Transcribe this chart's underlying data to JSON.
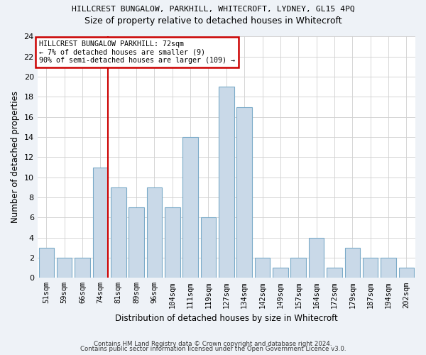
{
  "title": "HILLCREST BUNGALOW, PARKHILL, WHITECROFT, LYDNEY, GL15 4PQ",
  "subtitle": "Size of property relative to detached houses in Whitecroft",
  "xlabel": "Distribution of detached houses by size in Whitecroft",
  "ylabel": "Number of detached properties",
  "categories": [
    "51sqm",
    "59sqm",
    "66sqm",
    "74sqm",
    "81sqm",
    "89sqm",
    "96sqm",
    "104sqm",
    "111sqm",
    "119sqm",
    "127sqm",
    "134sqm",
    "142sqm",
    "149sqm",
    "157sqm",
    "164sqm",
    "172sqm",
    "179sqm",
    "187sqm",
    "194sqm",
    "202sqm"
  ],
  "values": [
    3,
    2,
    2,
    11,
    9,
    7,
    9,
    7,
    14,
    6,
    19,
    17,
    2,
    1,
    2,
    4,
    1,
    3,
    2,
    2,
    1
  ],
  "bar_color": "#c9d9e8",
  "bar_edge_color": "#7aaac8",
  "vline_color": "#cc0000",
  "vline_x_index": 3,
  "annotation_lines": [
    "HILLCREST BUNGALOW PARKHILL: 72sqm",
    "← 7% of detached houses are smaller (9)",
    "90% of semi-detached houses are larger (109) →"
  ],
  "annotation_box_color": "#ffffff",
  "annotation_box_edge": "#cc0000",
  "ylim": [
    0,
    24
  ],
  "yticks": [
    0,
    2,
    4,
    6,
    8,
    10,
    12,
    14,
    16,
    18,
    20,
    22,
    24
  ],
  "footer1": "Contains HM Land Registry data © Crown copyright and database right 2024.",
  "footer2": "Contains public sector information licensed under the Open Government Licence v3.0.",
  "bg_color": "#eef2f7",
  "plot_bg_color": "#ffffff"
}
